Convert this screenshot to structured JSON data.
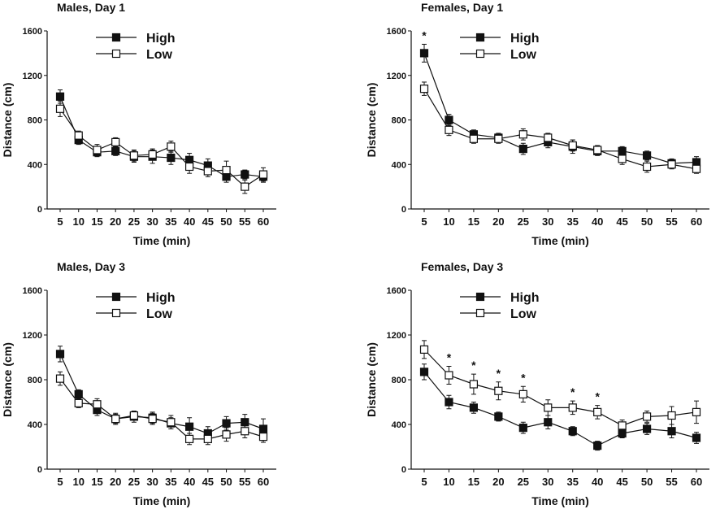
{
  "colors": {
    "ink": "#111111",
    "high_fill": "#111111",
    "low_fill": "#ffffff"
  },
  "chart_data": [
    {
      "type": "line",
      "title": "Males, Day 1",
      "xlabel": "Time (min)",
      "ylabel": "Distance (cm)",
      "x": [
        5,
        10,
        15,
        20,
        25,
        30,
        35,
        40,
        45,
        50,
        55,
        60
      ],
      "x_tick_labels": [
        "5",
        "10",
        "15",
        "20",
        "25",
        "30",
        "35",
        "40",
        "45",
        "50",
        "55",
        "60"
      ],
      "ylim": [
        0,
        1600
      ],
      "y_ticks": [
        0,
        400,
        800,
        1200,
        1600
      ],
      "y_tick_labels": [
        "0",
        "400",
        "800",
        "1200",
        "1600"
      ],
      "legend_position": "top-left",
      "series": [
        {
          "name": "High",
          "marker": "filled-square",
          "values": [
            1010,
            620,
            510,
            520,
            470,
            470,
            460,
            440,
            390,
            290,
            310,
            290
          ],
          "errors": [
            60,
            40,
            40,
            40,
            50,
            60,
            60,
            60,
            60,
            50,
            40,
            50
          ]
        },
        {
          "name": "Low",
          "marker": "open-square",
          "values": [
            900,
            660,
            530,
            600,
            480,
            490,
            560,
            380,
            340,
            350,
            200,
            310
          ],
          "errors": [
            70,
            40,
            50,
            40,
            50,
            50,
            50,
            60,
            50,
            80,
            60,
            60
          ]
        }
      ],
      "significance": []
    },
    {
      "type": "line",
      "title": "Females, Day 1",
      "xlabel": "Time (min)",
      "ylabel": "Distance (cm)",
      "x": [
        5,
        10,
        15,
        20,
        25,
        30,
        35,
        40,
        45,
        50,
        55,
        60
      ],
      "x_tick_labels": [
        "5",
        "10",
        "15",
        "20",
        "25",
        "30",
        "35",
        "40",
        "45",
        "50",
        "55",
        "60"
      ],
      "ylim": [
        0,
        1600
      ],
      "y_ticks": [
        0,
        400,
        800,
        1200,
        1600
      ],
      "y_tick_labels": [
        "0",
        "400",
        "800",
        "1200",
        "1600"
      ],
      "legend_position": "top-left",
      "series": [
        {
          "name": "High",
          "marker": "filled-square",
          "values": [
            1400,
            800,
            670,
            640,
            540,
            600,
            560,
            520,
            520,
            480,
            410,
            420
          ],
          "errors": [
            80,
            50,
            40,
            40,
            50,
            50,
            60,
            40,
            40,
            40,
            40,
            50
          ]
        },
        {
          "name": "Low",
          "marker": "open-square",
          "values": [
            1080,
            710,
            630,
            630,
            670,
            640,
            570,
            530,
            450,
            380,
            400,
            360
          ],
          "errors": [
            60,
            50,
            40,
            40,
            50,
            40,
            50,
            40,
            50,
            50,
            40,
            40
          ]
        }
      ],
      "significance": [
        {
          "x": 5,
          "label": "*"
        }
      ]
    },
    {
      "type": "line",
      "title": "Males, Day 3",
      "xlabel": "Time (min)",
      "ylabel": "Distance (cm)",
      "x": [
        5,
        10,
        15,
        20,
        25,
        30,
        35,
        40,
        45,
        50,
        55,
        60
      ],
      "x_tick_labels": [
        "5",
        "10",
        "15",
        "20",
        "25",
        "30",
        "35",
        "40",
        "45",
        "50",
        "55",
        "60"
      ],
      "ylim": [
        0,
        1600
      ],
      "y_ticks": [
        0,
        400,
        800,
        1200,
        1600
      ],
      "y_tick_labels": [
        "0",
        "400",
        "800",
        "1200",
        "1600"
      ],
      "legend_position": "top-left",
      "series": [
        {
          "name": "High",
          "marker": "filled-square",
          "values": [
            1030,
            670,
            530,
            450,
            470,
            460,
            410,
            380,
            320,
            410,
            420,
            360
          ],
          "errors": [
            70,
            40,
            50,
            40,
            50,
            50,
            50,
            80,
            60,
            60,
            70,
            90
          ]
        },
        {
          "name": "Low",
          "marker": "open-square",
          "values": [
            810,
            590,
            580,
            450,
            480,
            450,
            420,
            270,
            270,
            310,
            340,
            290
          ],
          "errors": [
            60,
            40,
            50,
            50,
            40,
            50,
            60,
            50,
            50,
            60,
            60,
            50
          ]
        }
      ],
      "significance": []
    },
    {
      "type": "line",
      "title": "Females, Day 3",
      "xlabel": "Time (min)",
      "ylabel": "Distance (cm)",
      "x": [
        5,
        10,
        15,
        20,
        25,
        30,
        35,
        40,
        45,
        50,
        55,
        60
      ],
      "x_tick_labels": [
        "5",
        "10",
        "15",
        "20",
        "25",
        "30",
        "35",
        "40",
        "45",
        "50",
        "55",
        "60"
      ],
      "ylim": [
        0,
        1600
      ],
      "y_ticks": [
        0,
        400,
        800,
        1200,
        1600
      ],
      "y_tick_labels": [
        "0",
        "400",
        "800",
        "1200",
        "1600"
      ],
      "legend_position": "top-left",
      "series": [
        {
          "name": "High",
          "marker": "filled-square",
          "values": [
            870,
            600,
            550,
            470,
            370,
            420,
            340,
            210,
            320,
            360,
            340,
            280
          ],
          "errors": [
            70,
            60,
            50,
            40,
            50,
            60,
            40,
            40,
            40,
            50,
            60,
            50
          ]
        },
        {
          "name": "Low",
          "marker": "open-square",
          "values": [
            1070,
            840,
            760,
            700,
            670,
            550,
            550,
            510,
            390,
            470,
            480,
            510
          ],
          "errors": [
            80,
            80,
            90,
            80,
            70,
            70,
            60,
            60,
            50,
            50,
            80,
            100
          ]
        }
      ],
      "significance": [
        {
          "x": 10,
          "label": "*"
        },
        {
          "x": 15,
          "label": "*"
        },
        {
          "x": 20,
          "label": "*"
        },
        {
          "x": 25,
          "label": "*"
        },
        {
          "x": 35,
          "label": "*"
        },
        {
          "x": 40,
          "label": "*"
        }
      ]
    }
  ]
}
